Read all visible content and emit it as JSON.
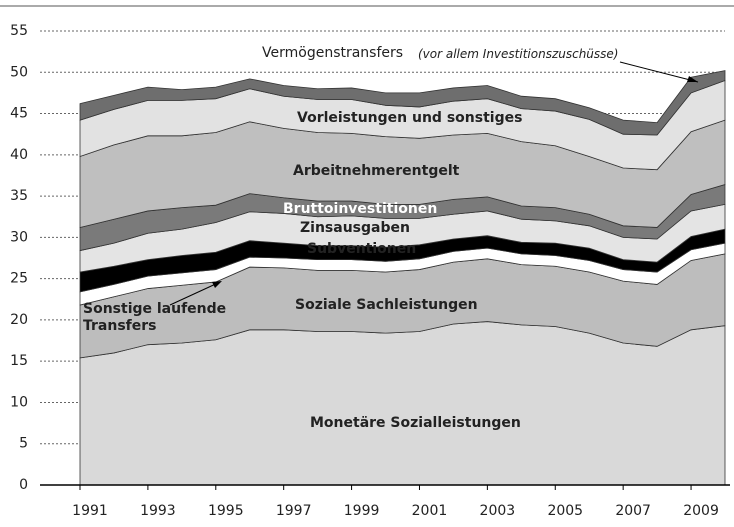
{
  "chart_data": {
    "type": "stacked_area",
    "x": [
      1991,
      1992,
      1993,
      1994,
      1995,
      1996,
      1997,
      1998,
      1999,
      2000,
      2001,
      2002,
      2003,
      2004,
      2005,
      2006,
      2007,
      2008,
      2009,
      2010
    ],
    "xlim": [
      1991,
      2010
    ],
    "xticks": [
      1991,
      1993,
      1995,
      1997,
      1999,
      2001,
      2003,
      2005,
      2007,
      2009
    ],
    "ylim": [
      0,
      55
    ],
    "yticks": [
      0,
      5,
      10,
      15,
      20,
      25,
      30,
      35,
      40,
      45,
      50,
      55
    ],
    "grid": true,
    "annotation": "(vor allem Investitionszuschüsse)",
    "series": [
      {
        "name": "Monetäre Sozialleistungen",
        "color": "#d9d9d9",
        "values": [
          15.4,
          16.0,
          17.0,
          17.2,
          17.6,
          18.8,
          18.8,
          18.6,
          18.6,
          18.4,
          18.6,
          19.5,
          19.8,
          19.4,
          19.2,
          18.4,
          17.2,
          16.8,
          18.8,
          19.3
        ]
      },
      {
        "name": "Soziale Sachleistungen",
        "color": "#bdbdbd",
        "values": [
          6.4,
          6.8,
          6.8,
          7.0,
          7.0,
          7.6,
          7.5,
          7.4,
          7.4,
          7.4,
          7.5,
          7.5,
          7.6,
          7.3,
          7.3,
          7.4,
          7.5,
          7.5,
          8.4,
          8.7
        ]
      },
      {
        "name": "Sonstige laufende Transfers",
        "color": "#ffffff",
        "values": [
          1.6,
          1.5,
          1.5,
          1.5,
          1.5,
          1.2,
          1.2,
          1.3,
          1.3,
          1.3,
          1.3,
          1.3,
          1.3,
          1.3,
          1.3,
          1.4,
          1.4,
          1.5,
          1.3,
          1.3
        ]
      },
      {
        "name": "Subventionen",
        "color": "#000000",
        "values": [
          2.4,
          2.2,
          2.0,
          2.1,
          2.1,
          2.0,
          1.8,
          1.7,
          1.7,
          1.7,
          1.7,
          1.5,
          1.5,
          1.4,
          1.5,
          1.5,
          1.2,
          1.2,
          1.6,
          1.7
        ]
      },
      {
        "name": "Zinsausgaben",
        "color": "#e4e4e4",
        "values": [
          2.6,
          2.8,
          3.2,
          3.2,
          3.6,
          3.5,
          3.6,
          3.5,
          3.6,
          3.5,
          3.2,
          3.0,
          3.0,
          2.8,
          2.7,
          2.7,
          2.7,
          2.8,
          3.1,
          3.0
        ]
      },
      {
        "name": "Bruttoinvestitionen",
        "color": "#7a7a7a",
        "values": [
          2.8,
          2.9,
          2.7,
          2.6,
          2.1,
          2.2,
          1.9,
          1.9,
          1.8,
          1.7,
          1.7,
          1.8,
          1.7,
          1.6,
          1.6,
          1.4,
          1.4,
          1.4,
          2.0,
          2.4
        ]
      },
      {
        "name": "Arbeitnehmerentgelt",
        "color": "#bfbfbf",
        "values": [
          8.6,
          9.0,
          9.1,
          8.7,
          8.8,
          8.7,
          8.4,
          8.3,
          8.2,
          8.2,
          8.0,
          7.8,
          7.7,
          7.8,
          7.5,
          7.0,
          7.0,
          7.0,
          7.6,
          7.8
        ]
      },
      {
        "name": "Vorleistungen und sonstiges",
        "color": "#e2e2e2",
        "values": [
          4.4,
          4.3,
          4.3,
          4.3,
          4.1,
          4.0,
          3.9,
          4.0,
          4.1,
          3.8,
          3.8,
          4.1,
          4.2,
          4.0,
          4.2,
          4.5,
          4.1,
          4.2,
          4.7,
          4.8
        ]
      },
      {
        "name": "Vermögenstransfers",
        "color": "#6e6e6e",
        "values": [
          2.0,
          1.7,
          1.6,
          1.3,
          1.4,
          1.2,
          1.3,
          1.3,
          1.4,
          1.5,
          1.7,
          1.6,
          1.6,
          1.5,
          1.5,
          1.4,
          1.7,
          1.5,
          1.9,
          1.2
        ]
      }
    ]
  }
}
